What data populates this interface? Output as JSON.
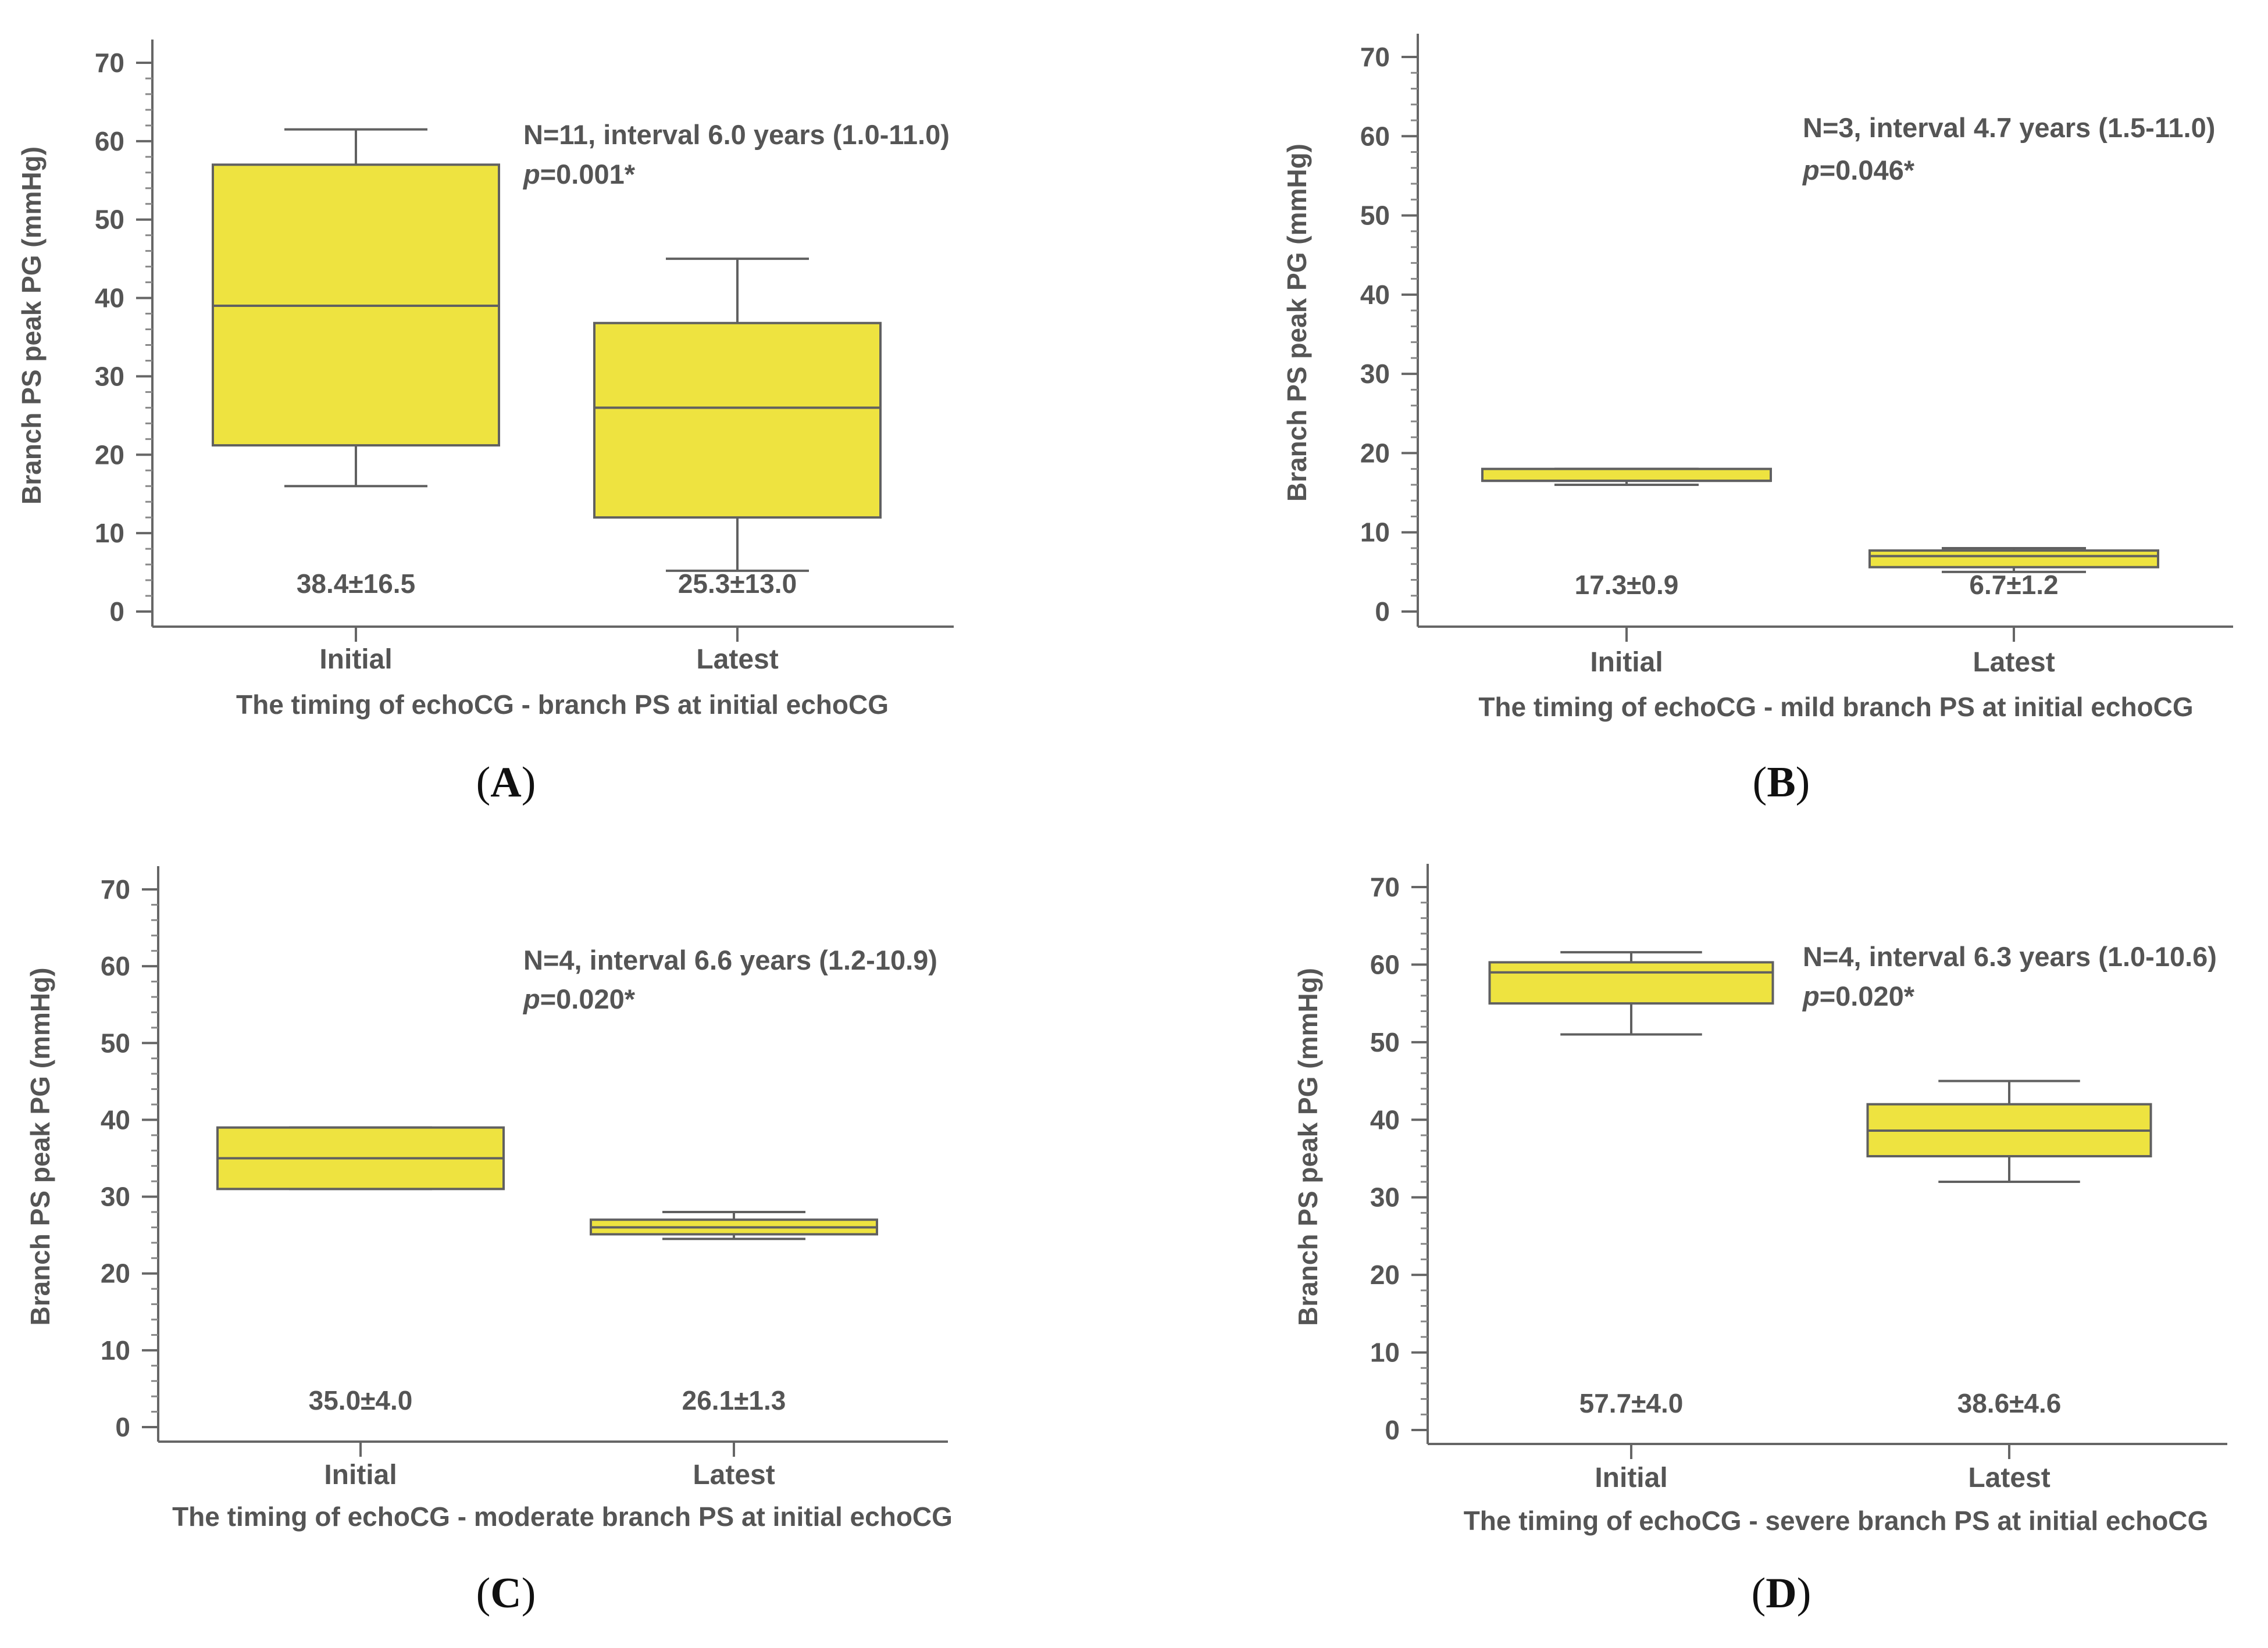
{
  "figure": {
    "colors": {
      "box_fill": "#EEE340",
      "axis": "#666666",
      "text": "#555555",
      "tag": "#111111"
    }
  },
  "chart_data": [
    {
      "type": "box",
      "tag": "(A)",
      "ylabel": "Branch PS peak PG (mmHg)",
      "xlabel": "The timing of echoCG - branch PS at initial echoCG",
      "ylim": [
        0,
        70
      ],
      "yticks": [
        0,
        10,
        20,
        30,
        40,
        50,
        60,
        70
      ],
      "annotation_line1": "N=11, interval 6.0 years (1.0-11.0)",
      "annotation_p_italic": "p",
      "annotation_p_value": "=0.001*",
      "categories": [
        "Initial",
        "Latest"
      ],
      "boxes": [
        {
          "min": 16,
          "q1": 21.2,
          "median": 39,
          "q3": 57,
          "max": 61.5,
          "stat": "38.4±16.5"
        },
        {
          "min": 5.2,
          "q1": 12,
          "median": 26,
          "q3": 36.8,
          "max": 45,
          "stat": "25.3±13.0"
        }
      ]
    },
    {
      "type": "box",
      "tag": "(B)",
      "ylabel": "Branch PS peak PG (mmHg)",
      "xlabel": "The timing of echoCG - mild branch PS at initial echoCG",
      "ylim": [
        0,
        70
      ],
      "yticks": [
        0,
        10,
        20,
        30,
        40,
        50,
        60,
        70
      ],
      "annotation_line1": "N=3, interval 4.7 years (1.5-11.0)",
      "annotation_p_italic": "p",
      "annotation_p_value": "=0.046*",
      "categories": [
        "Initial",
        "Latest"
      ],
      "boxes": [
        {
          "min": 16,
          "q1": 16.5,
          "median": 16.5,
          "q3": 18,
          "max": 18,
          "stat": "17.3±0.9"
        },
        {
          "min": 5,
          "q1": 5.6,
          "median": 7,
          "q3": 7.7,
          "max": 8,
          "stat": "6.7±1.2"
        }
      ]
    },
    {
      "type": "box",
      "tag": "(C)",
      "ylabel": "Branch PS peak PG (mmHg)",
      "xlabel": "The timing of echoCG - moderate branch PS at initial echoCG",
      "ylim": [
        0,
        70
      ],
      "yticks": [
        0,
        10,
        20,
        30,
        40,
        50,
        60,
        70
      ],
      "annotation_line1": "N=4, interval 6.6 years (1.2-10.9)",
      "annotation_p_italic": "p",
      "annotation_p_value": "=0.020*",
      "categories": [
        "Initial",
        "Latest"
      ],
      "boxes": [
        {
          "min": 31,
          "q1": 31,
          "median": 35,
          "q3": 39,
          "max": 39,
          "stat": "35.0±4.0"
        },
        {
          "min": 24.5,
          "q1": 25.1,
          "median": 26,
          "q3": 27,
          "max": 28,
          "stat": "26.1±1.3"
        }
      ]
    },
    {
      "type": "box",
      "tag": "(D)",
      "ylabel": "Branch PS peak PG (mmHg)",
      "xlabel": "The timing of echoCG - severe branch PS at initial echoCG",
      "ylim": [
        0,
        70
      ],
      "yticks": [
        0,
        10,
        20,
        30,
        40,
        50,
        60,
        70
      ],
      "annotation_line1": "N=4, interval 6.3 years (1.0-10.6)",
      "annotation_p_italic": "p",
      "annotation_p_value": "=0.020*",
      "categories": [
        "Initial",
        "Latest"
      ],
      "boxes": [
        {
          "min": 51,
          "q1": 55,
          "median": 59,
          "q3": 60.3,
          "max": 61.6,
          "stat": "57.7±4.0"
        },
        {
          "min": 32,
          "q1": 35.3,
          "median": 38.6,
          "q3": 42,
          "max": 45,
          "stat": "38.6±4.6"
        }
      ]
    }
  ]
}
